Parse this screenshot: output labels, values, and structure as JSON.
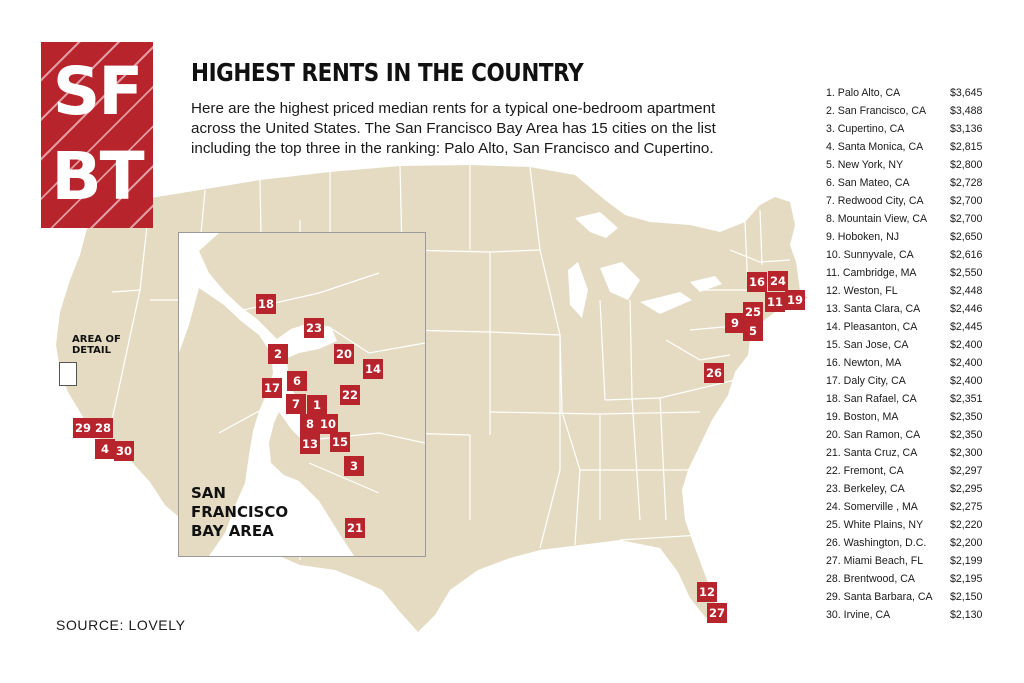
{
  "logo": {
    "line1": "SF",
    "line2": "BT"
  },
  "header": {
    "title": "HIGHEST RENTS IN THE COUNTRY",
    "subtitle": "Here are the highest priced median rents for a typical one-bedroom apartment across the United States. The  San Francisco Bay Area has 15 cities on the list including the top three in the ranking: Palo Alto, San Francisco and Cupertino."
  },
  "map": {
    "land_color": "#e4dbc2",
    "border_color": "#ffffff",
    "marker_color": "#b8242c",
    "detail_label": [
      "AREA OF",
      "DETAIL"
    ],
    "inset_label": [
      "SAN",
      "FRANCISCO",
      "BAY AREA"
    ],
    "markers": [
      {
        "rank": "1"
      },
      {
        "rank": "2"
      },
      {
        "rank": "3"
      },
      {
        "rank": "4"
      },
      {
        "rank": "5"
      },
      {
        "rank": "6"
      },
      {
        "rank": "7"
      },
      {
        "rank": "8"
      },
      {
        "rank": "9"
      },
      {
        "rank": "10"
      },
      {
        "rank": "11"
      },
      {
        "rank": "12"
      },
      {
        "rank": "13"
      },
      {
        "rank": "14"
      },
      {
        "rank": "15"
      },
      {
        "rank": "16"
      },
      {
        "rank": "17"
      },
      {
        "rank": "18"
      },
      {
        "rank": "19"
      },
      {
        "rank": "20"
      },
      {
        "rank": "21"
      },
      {
        "rank": "22"
      },
      {
        "rank": "23"
      },
      {
        "rank": "24"
      },
      {
        "rank": "25"
      },
      {
        "rank": "26"
      },
      {
        "rank": "27"
      },
      {
        "rank": "28"
      },
      {
        "rank": "29"
      },
      {
        "rank": "30"
      }
    ]
  },
  "source": "SOURCE: LOVELY",
  "ranking": [
    {
      "city": "1. Palo Alto, CA",
      "rent": "$3,645"
    },
    {
      "city": "2. San Francisco, CA",
      "rent": "$3,488"
    },
    {
      "city": "3. Cupertino, CA",
      "rent": "$3,136"
    },
    {
      "city": "4. Santa Monica, CA",
      "rent": "$2,815"
    },
    {
      "city": "5. New York, NY",
      "rent": "$2,800"
    },
    {
      "city": "6. San Mateo, CA",
      "rent": "$2,728"
    },
    {
      "city": "7. Redwood City, CA",
      "rent": "$2,700"
    },
    {
      "city": "8. Mountain View, CA",
      "rent": "$2,700"
    },
    {
      "city": "9. Hoboken, NJ",
      "rent": "$2,650"
    },
    {
      "city": "10. Sunnyvale, CA",
      "rent": "$2,616"
    },
    {
      "city": "11. Cambridge, MA",
      "rent": "$2,550"
    },
    {
      "city": "12. Weston, FL",
      "rent": "$2,448"
    },
    {
      "city": "13. Santa Clara, CA",
      "rent": "$2,446"
    },
    {
      "city": "14. Pleasanton, CA",
      "rent": "$2,445"
    },
    {
      "city": "15. San Jose, CA",
      "rent": "$2,400"
    },
    {
      "city": "16. Newton, MA",
      "rent": "$2,400"
    },
    {
      "city": "17. Daly City, CA",
      "rent": "$2,400"
    },
    {
      "city": "18. San Rafael, CA",
      "rent": "$2,351"
    },
    {
      "city": "19. Boston, MA",
      "rent": "$2,350"
    },
    {
      "city": "20. San Ramon, CA",
      "rent": "$2,350"
    },
    {
      "city": "21. Santa Cruz, CA",
      "rent": "$2,300"
    },
    {
      "city": "22. Fremont, CA",
      "rent": "$2,297"
    },
    {
      "city": "23. Berkeley, CA",
      "rent": "$2,295"
    },
    {
      "city": "24. Somerville , MA",
      "rent": "$2,275"
    },
    {
      "city": "25. White Plains, NY",
      "rent": "$2,220"
    },
    {
      "city": "26. Washington, D.C.",
      "rent": "$2,200"
    },
    {
      "city": "27. Miami Beach, FL",
      "rent": "$2,199"
    },
    {
      "city": "28. Brentwood, CA",
      "rent": "$2,195"
    },
    {
      "city": "29. Santa Barbara, CA",
      "rent": "$2,150"
    },
    {
      "city": "30. Irvine, CA",
      "rent": "$2,130"
    }
  ]
}
